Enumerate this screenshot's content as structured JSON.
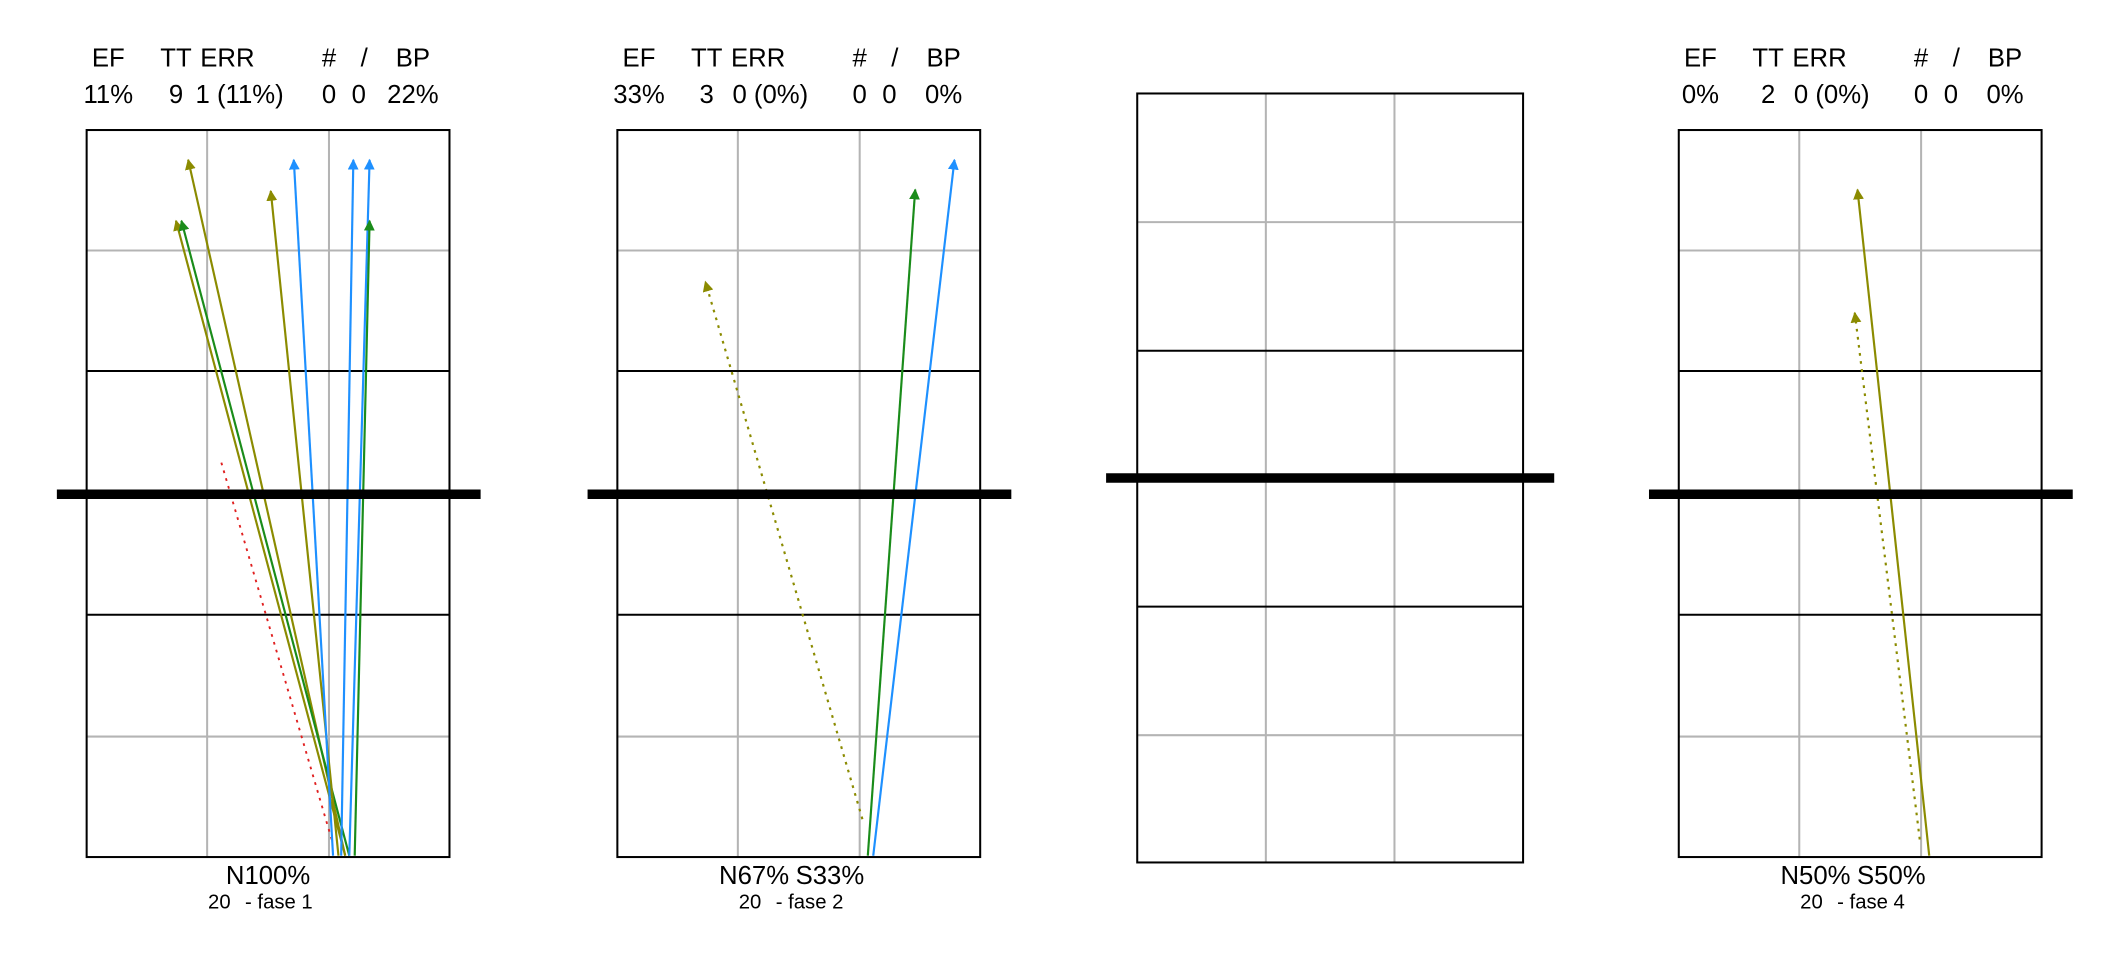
{
  "panels": [
    {
      "headers": [
        "EF",
        "TT",
        "ERR",
        "#",
        "/",
        "BP"
      ],
      "stats": [
        "11%",
        "9",
        "1 (11%)",
        "0",
        "0",
        "22%"
      ],
      "zones": [
        "N100%"
      ],
      "footer": [
        "20",
        "- fase 1"
      ]
    },
    {
      "headers": [
        "EF",
        "TT",
        "ERR",
        "#",
        "/",
        "BP"
      ],
      "stats": [
        "33%",
        "3",
        "0 (0%)",
        "0",
        "0",
        "0%"
      ],
      "zones": [
        "N67%",
        "S33%"
      ],
      "footer": [
        "20",
        "- fase 2"
      ]
    },
    {},
    {
      "headers": [
        "EF",
        "TT",
        "ERR",
        "#",
        "/",
        "BP"
      ],
      "stats": [
        "0%",
        "2",
        "0 (0%)",
        "0",
        "0",
        "0%"
      ],
      "zones": [
        "N50%",
        "S50%"
      ],
      "footer": [
        "20",
        "- fase 4"
      ]
    }
  ]
}
